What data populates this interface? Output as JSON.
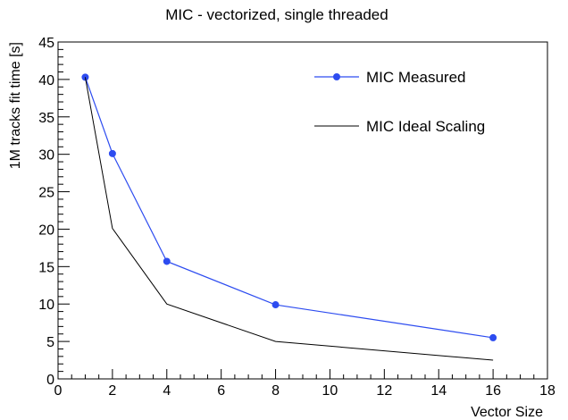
{
  "chart_data": {
    "type": "line",
    "title": "MIC - vectorized, single threaded",
    "xlabel": "Vector Size",
    "ylabel": "1M tracks fit time [s]",
    "xlim": [
      0,
      18
    ],
    "ylim": [
      0,
      45
    ],
    "x_ticks": [
      0,
      2,
      4,
      6,
      8,
      10,
      12,
      14,
      16,
      18
    ],
    "y_ticks": [
      0,
      5,
      10,
      15,
      20,
      25,
      30,
      35,
      40,
      45
    ],
    "grid": false,
    "legend_position": "top-right",
    "series": [
      {
        "name": "MIC Measured",
        "color": "#2d4cf0",
        "marker": "circle",
        "x": [
          1,
          2,
          4,
          8,
          16
        ],
        "y": [
          40.3,
          30.1,
          15.7,
          9.9,
          5.5
        ]
      },
      {
        "name": "MIC Ideal Scaling",
        "color": "#000000",
        "marker": "none",
        "x": [
          1,
          2,
          4,
          8,
          16
        ],
        "y": [
          40.3,
          20.1,
          10.0,
          5.0,
          2.5
        ]
      }
    ]
  }
}
